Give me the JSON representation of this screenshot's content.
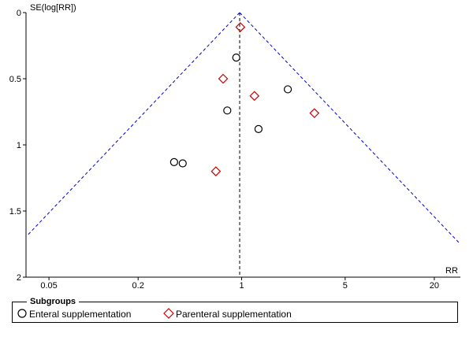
{
  "chart_data": {
    "type": "scatter",
    "title": "",
    "ylabel": "SE(log[RR])",
    "xlabel": "RR",
    "x_scale": "log",
    "y_reversed": true,
    "ylim": [
      0,
      2
    ],
    "xlim": [
      0.035,
      30
    ],
    "x_ticks": [
      {
        "value": 0.05,
        "label": "0.05"
      },
      {
        "value": 0.2,
        "label": "0.2"
      },
      {
        "value": 1,
        "label": "1"
      },
      {
        "value": 5,
        "label": "5"
      },
      {
        "value": 20,
        "label": "20"
      }
    ],
    "y_ticks": [
      {
        "value": 0,
        "label": "0"
      },
      {
        "value": 0.5,
        "label": "0.5"
      },
      {
        "value": 1,
        "label": "1"
      },
      {
        "value": 1.5,
        "label": "1.5"
      },
      {
        "value": 2,
        "label": "2"
      }
    ],
    "pooled_rr": 0.97,
    "funnel_color": "#0000cc",
    "series": [
      {
        "name": "Enteral supplementation",
        "marker": "circle",
        "color": "#000000",
        "points": [
          {
            "x": 0.92,
            "y": 0.34
          },
          {
            "x": 0.8,
            "y": 0.74
          },
          {
            "x": 2.05,
            "y": 0.58
          },
          {
            "x": 1.3,
            "y": 0.88
          },
          {
            "x": 0.35,
            "y": 1.13
          },
          {
            "x": 0.4,
            "y": 1.14
          }
        ]
      },
      {
        "name": "Parenteral supplementation",
        "marker": "diamond",
        "color": "#cc0000",
        "points": [
          {
            "x": 0.98,
            "y": 0.11
          },
          {
            "x": 0.75,
            "y": 0.5
          },
          {
            "x": 1.22,
            "y": 0.63
          },
          {
            "x": 3.1,
            "y": 0.76
          },
          {
            "x": 0.67,
            "y": 1.2
          }
        ]
      }
    ]
  },
  "legend": {
    "title": "Subgroups",
    "items": [
      {
        "label": "Enteral supplementation",
        "marker": "circle"
      },
      {
        "label": "Parenteral supplementation",
        "marker": "diamond"
      }
    ]
  }
}
